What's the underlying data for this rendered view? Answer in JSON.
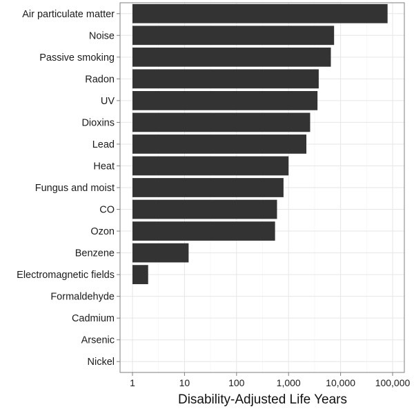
{
  "chart_data": {
    "type": "bar",
    "orientation": "horizontal",
    "x_scale": "log10",
    "xlabel": "Disability-Adjusted Life Years",
    "xlim": [
      1,
      100000
    ],
    "x_ticks": [
      1,
      10,
      100,
      1000,
      10000,
      100000
    ],
    "x_tick_labels": [
      "1",
      "10",
      "100",
      "1,000",
      "10,000",
      "100,000"
    ],
    "grid": true,
    "bar_color": "#333333",
    "categories": [
      "Air particulate matter",
      "Noise",
      "Passive smoking",
      "Radon",
      "UV",
      "Dioxins",
      "Lead",
      "Heat",
      "Fungus and moist",
      "CO",
      "Ozon",
      "Benzene",
      "Electromagnetic fields",
      "Formaldehyde",
      "Cadmium",
      "Arsenic",
      "Nickel"
    ],
    "values": [
      80000,
      7500,
      6500,
      3800,
      3600,
      2600,
      2200,
      1000,
      800,
      600,
      550,
      12,
      2,
      1,
      1,
      1,
      1
    ]
  }
}
